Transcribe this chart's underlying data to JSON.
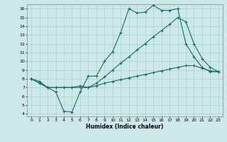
{
  "xlabel": "Humidex (Indice chaleur)",
  "bg_color": "#cce8e8",
  "grid_color": "#aacfcf",
  "line_color": "#1a6b6b",
  "xlim": [
    -0.5,
    23.5
  ],
  "ylim": [
    3.7,
    16.5
  ],
  "xticks": [
    0,
    1,
    2,
    3,
    4,
    5,
    6,
    7,
    8,
    9,
    10,
    11,
    12,
    13,
    14,
    15,
    16,
    17,
    18,
    19,
    20,
    21,
    22,
    23
  ],
  "yticks": [
    4,
    5,
    6,
    7,
    8,
    9,
    10,
    11,
    12,
    13,
    14,
    15,
    16
  ],
  "line1_x": [
    0,
    1,
    2,
    3,
    4,
    5,
    6,
    7,
    8,
    9,
    10,
    11,
    12,
    13,
    14,
    15,
    16,
    17,
    18,
    19,
    20,
    21,
    22,
    23
  ],
  "line1_y": [
    8.0,
    7.7,
    7.0,
    6.5,
    4.3,
    4.2,
    6.5,
    8.3,
    8.3,
    10.0,
    11.1,
    13.3,
    16.0,
    15.5,
    15.6,
    16.4,
    15.8,
    15.8,
    16.0,
    12.0,
    10.5,
    9.3,
    8.8,
    8.8
  ],
  "line2_x": [
    0,
    1,
    2,
    3,
    4,
    5,
    6,
    7,
    8,
    9,
    10,
    11,
    12,
    13,
    14,
    15,
    16,
    17,
    18,
    19,
    20,
    21,
    22,
    23
  ],
  "line2_y": [
    8.0,
    7.5,
    7.0,
    7.0,
    7.0,
    7.0,
    7.2,
    7.0,
    7.5,
    8.2,
    9.0,
    9.8,
    10.5,
    11.3,
    12.0,
    12.8,
    13.5,
    14.2,
    15.0,
    14.5,
    12.0,
    10.3,
    9.3,
    8.8
  ],
  "line3_x": [
    0,
    1,
    2,
    3,
    4,
    5,
    6,
    7,
    8,
    9,
    10,
    11,
    12,
    13,
    14,
    15,
    16,
    17,
    18,
    19,
    20,
    21,
    22,
    23
  ],
  "line3_y": [
    8.0,
    7.5,
    7.0,
    7.0,
    7.0,
    7.0,
    7.0,
    7.0,
    7.2,
    7.5,
    7.7,
    7.9,
    8.1,
    8.3,
    8.5,
    8.7,
    8.9,
    9.1,
    9.3,
    9.5,
    9.5,
    9.2,
    8.9,
    8.8
  ]
}
